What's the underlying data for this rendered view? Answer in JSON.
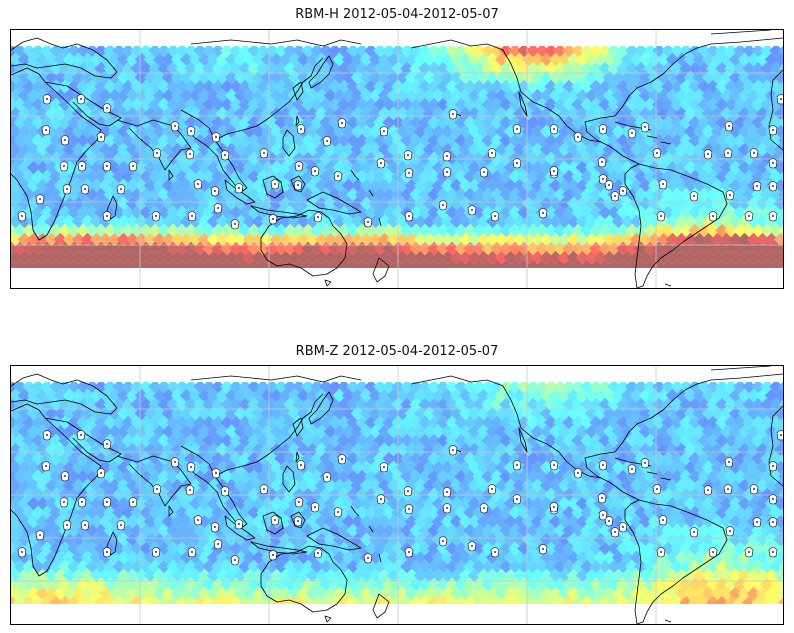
{
  "panels": [
    {
      "id": "rbm-h",
      "title": "RBM-H 2012-05-04-2012-05-07",
      "field": "h",
      "markers": true
    },
    {
      "id": "rbm-z",
      "title": "RBM-Z 2012-05-04-2012-05-07",
      "field": "z",
      "markers": true
    }
  ],
  "colormap": {
    "name": "jet",
    "alpha": 0.6,
    "stops": [
      "#00007f",
      "#0000ff",
      "#007fff",
      "#00ffff",
      "#7fff7f",
      "#ffff00",
      "#ff7f00",
      "#ff0000",
      "#7f0000"
    ]
  },
  "map": {
    "projection": "Plate Carree (Pacific-centred)",
    "coast_color": "#000000",
    "grid": true,
    "grid_color": "#c8c8c8"
  }
}
